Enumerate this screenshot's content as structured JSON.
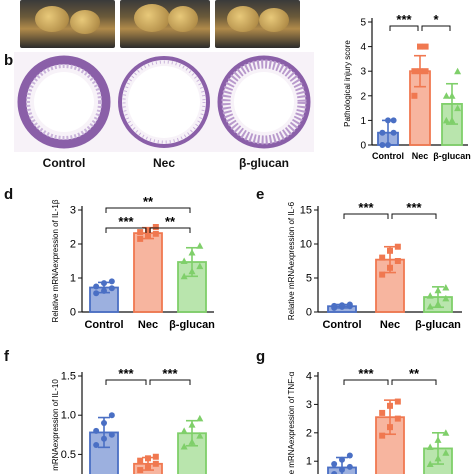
{
  "panel_letters": [
    "b",
    "d",
    "e",
    "f",
    "g"
  ],
  "histology": {
    "labels": [
      "Control",
      "Nec",
      "β-glucan"
    ],
    "colors": {
      "tissue": "#8a5fa8",
      "tissue_light": "#c9b3da",
      "background": "#f4eef6"
    }
  },
  "colors": {
    "control": "#4a6fc4",
    "nec": "#f07850",
    "bglucan": "#7fcf6a"
  },
  "chart_data": [
    {
      "id": "injury",
      "type": "bar",
      "ylabel": "Pathological injury score",
      "categories": [
        "Control",
        "Nec",
        "β-glucan"
      ],
      "values": [
        0.5,
        3.0,
        1.67
      ],
      "errors": [
        0.5,
        0.63,
        0.82
      ],
      "points": [
        [
          0,
          0,
          0.5,
          0.5,
          1,
          1
        ],
        [
          2,
          3,
          3,
          3,
          4,
          4
        ],
        [
          1,
          1,
          1.5,
          2,
          2,
          3
        ]
      ],
      "ylim": [
        0,
        5
      ],
      "ticks": [
        0,
        1,
        2,
        3,
        4,
        5
      ],
      "significance": [
        {
          "from": 0,
          "to": 1,
          "label": "***"
        },
        {
          "from": 1,
          "to": 2,
          "label": "*"
        }
      ]
    },
    {
      "id": "il1b",
      "type": "bar",
      "ylabel": "Relative mRNAexpression of IL-1β",
      "categories": [
        "Control",
        "Nec",
        "β-glucan"
      ],
      "values": [
        0.72,
        2.32,
        1.47
      ],
      "errors": [
        0.15,
        0.16,
        0.42
      ],
      "points": [
        [
          0.55,
          0.62,
          0.7,
          0.75,
          0.85,
          0.9
        ],
        [
          2.15,
          2.25,
          2.3,
          2.35,
          2.4,
          2.5
        ],
        [
          1.05,
          1.2,
          1.35,
          1.5,
          1.75,
          1.95
        ]
      ],
      "ylim": [
        0,
        3
      ],
      "ticks": [
        0,
        1,
        2,
        3
      ],
      "significance": [
        {
          "from": 0,
          "to": 2,
          "label": "**"
        },
        {
          "from": 0,
          "to": 1,
          "label": "***"
        },
        {
          "from": 1,
          "to": 2,
          "label": "**"
        }
      ]
    },
    {
      "id": "il6",
      "type": "bar",
      "ylabel": "Relative mRNAexpression of IL-6",
      "categories": [
        "Control",
        "Nec",
        "β-glucan"
      ],
      "values": [
        0.85,
        7.7,
        2.2
      ],
      "errors": [
        0.25,
        1.9,
        1.5
      ],
      "points": [
        [
          0.6,
          0.75,
          0.85,
          0.9,
          1.0,
          1.1
        ],
        [
          5.5,
          6.5,
          7.5,
          8.0,
          9.0,
          9.6
        ],
        [
          0.8,
          1.2,
          2.0,
          2.4,
          3.2,
          3.6
        ]
      ],
      "ylim": [
        0,
        15
      ],
      "ticks": [
        0,
        5,
        10,
        15
      ],
      "significance": [
        {
          "from": 0,
          "to": 1,
          "label": "***"
        },
        {
          "from": 1,
          "to": 2,
          "label": "***"
        }
      ]
    },
    {
      "id": "il10",
      "type": "bar",
      "ylabel": "mRNAexpression of IL-10",
      "categories": [
        "Control",
        "Nec",
        "β-glucan"
      ],
      "values": [
        0.78,
        0.38,
        0.77
      ],
      "errors": [
        0.19,
        0.08,
        0.16
      ],
      "points": [
        [
          0.62,
          0.7,
          0.75,
          0.8,
          0.9,
          1.0
        ],
        [
          0.3,
          0.34,
          0.38,
          0.42,
          0.45,
          0.47
        ],
        [
          0.6,
          0.66,
          0.74,
          0.8,
          0.88,
          0.96
        ]
      ],
      "ylim": [
        0.25,
        1.5
      ],
      "ticks": [
        0.5,
        1.0,
        1.5
      ],
      "tick_labels": [
        "0.5",
        "1.0",
        "1.5"
      ],
      "significance": [
        {
          "from": 0,
          "to": 1,
          "label": "***"
        },
        {
          "from": 1,
          "to": 2,
          "label": "***"
        }
      ]
    },
    {
      "id": "tnfa",
      "type": "bar",
      "ylabel": "ve mRNAexpression of TNF-α",
      "categories": [
        "Control",
        "Nec",
        "β-glucan"
      ],
      "values": [
        0.78,
        2.55,
        1.45
      ],
      "errors": [
        0.35,
        0.6,
        0.55
      ],
      "points": [
        [
          0.55,
          0.7,
          0.8,
          0.9,
          1.05,
          1.2
        ],
        [
          1.9,
          2.2,
          2.5,
          2.7,
          2.95,
          3.1
        ],
        [
          0.9,
          1.1,
          1.3,
          1.5,
          1.75,
          2.0
        ]
      ],
      "ylim": [
        0.55,
        4
      ],
      "ticks": [
        1,
        2,
        3,
        4
      ],
      "significance": [
        {
          "from": 0,
          "to": 1,
          "label": "***"
        },
        {
          "from": 1,
          "to": 2,
          "label": "**"
        }
      ]
    }
  ]
}
